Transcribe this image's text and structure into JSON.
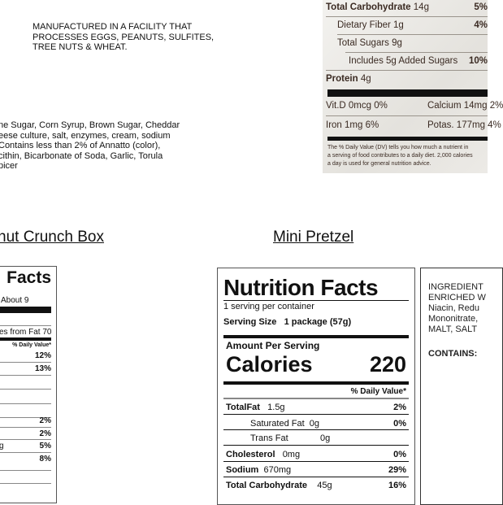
{
  "allergen_note": [
    "MANUFACTURED IN A FACILITY THAT",
    "PROCESSES EGGS, PEANUTS, SULFITES,",
    "TREE NUTS & WHEAT."
  ],
  "ingredients_partial": [
    "ne Sugar, Corn Syrup, Brown Sugar, Cheddar",
    "eese culture, salt, enzymes, cream, sodium",
    "Contains less than 2% of Annatto (color),",
    "cithin, Bicarbonate of Soda, Garlic, Torula",
    "picer"
  ],
  "photo_label": {
    "rows": [
      {
        "name": "Total Carbohydrate",
        "amount": "14g",
        "pct": "5%"
      },
      {
        "name": "Dietary Fiber 1g",
        "amount": "",
        "pct": "4%"
      },
      {
        "name": "Total Sugars 9g",
        "amount": "",
        "pct": ""
      },
      {
        "name": "Includes 5g Added Sugars",
        "amount": "",
        "pct": "10%"
      },
      {
        "name": "Protein",
        "amount": "4g",
        "pct": ""
      }
    ],
    "vitd": "Vit.D 0mcg 0%",
    "calcium": "Calcium 14mg 2%",
    "iron": "Iron 1mg 6%",
    "potas": "Potas. 177mg 4%",
    "footnote": [
      "The % Daily Value (DV) tells you how much a nutrient in",
      "a serving of food contributes to a daily diet. 2,000 calories",
      "a day is used for general nutrition advice."
    ]
  },
  "left_product": {
    "title": "nut Crunch Box",
    "facts": "Facts",
    "servings": "About 9",
    "calories_from_fat": "es from Fat 70",
    "dv_header": "% Daily Value*",
    "pcts": [
      "12%",
      "13%",
      "",
      "",
      "",
      "2%",
      "2%",
      "5%",
      "8%"
    ],
    "row_fragment": "g"
  },
  "mini_pretzel": {
    "title": "Mini Pretzel",
    "heading": "Nutrition Facts",
    "servings_per": "1 serving per container",
    "serving_size_label": "Serving Size",
    "serving_size": "1 package (57g)",
    "amount_per": "Amount Per Serving",
    "calories_label": "Calories",
    "calories": "220",
    "dv_header": "% Daily Value*",
    "rows": [
      {
        "name": "TotalFat",
        "amount": "1.5g",
        "pct": "2%",
        "bold": true,
        "indent": false
      },
      {
        "name": "Saturated Fat",
        "amount": "0g",
        "pct": "0%",
        "bold": false,
        "indent": true
      },
      {
        "name": "Trans Fat",
        "amount": "0g",
        "pct": "",
        "bold": false,
        "indent": true
      },
      {
        "name": "Cholesterol",
        "amount": "0mg",
        "pct": "0%",
        "bold": true,
        "indent": false
      },
      {
        "name": "Sodium",
        "amount": "670mg",
        "pct": "29%",
        "bold": true,
        "indent": false
      },
      {
        "name": "Total Carbohydrate",
        "amount": "45g",
        "pct": "16%",
        "bold": true,
        "indent": false
      }
    ]
  },
  "ingredients_right": {
    "lines": [
      "INGREDIENT",
      "ENRICHED W",
      "Niacin, Redu",
      "Mononitrate,",
      "MALT, SALT"
    ],
    "contains": "CONTAINS:"
  }
}
